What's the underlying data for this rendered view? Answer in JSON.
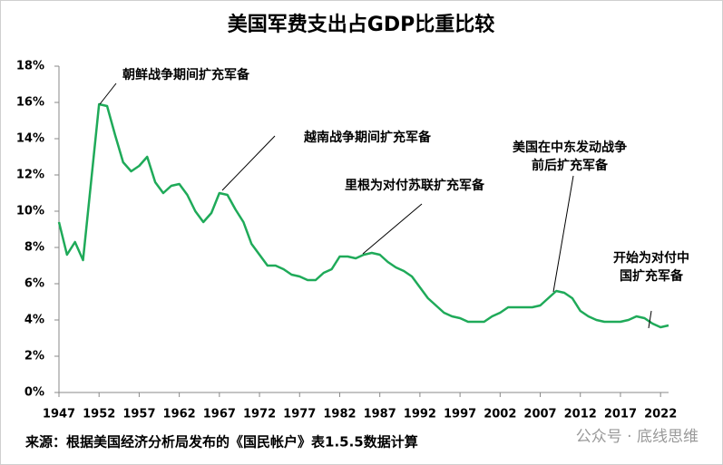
{
  "chart_data": {
    "type": "line",
    "title": "美国军费支出占GDP比重比较",
    "x": [
      1947,
      1948,
      1949,
      1950,
      1951,
      1952,
      1953,
      1954,
      1955,
      1956,
      1957,
      1958,
      1959,
      1960,
      1961,
      1962,
      1963,
      1964,
      1965,
      1966,
      1967,
      1968,
      1969,
      1970,
      1971,
      1972,
      1973,
      1974,
      1975,
      1976,
      1977,
      1978,
      1979,
      1980,
      1981,
      1982,
      1983,
      1984,
      1985,
      1986,
      1987,
      1988,
      1989,
      1990,
      1991,
      1992,
      1993,
      1994,
      1995,
      1996,
      1997,
      1998,
      1999,
      2000,
      2001,
      2002,
      2003,
      2004,
      2005,
      2006,
      2007,
      2008,
      2009,
      2010,
      2011,
      2012,
      2013,
      2014,
      2015,
      2016,
      2017,
      2018,
      2019,
      2020,
      2021,
      2022,
      2023
    ],
    "series": [
      {
        "color": "#1faa59",
        "values": [
          9.4,
          7.6,
          8.3,
          7.3,
          11.6,
          15.9,
          15.8,
          14.2,
          12.7,
          12.2,
          12.5,
          13.0,
          11.6,
          11.0,
          11.4,
          11.5,
          10.9,
          10.0,
          9.4,
          9.9,
          11.0,
          10.9,
          10.1,
          9.4,
          8.2,
          7.6,
          7.0,
          7.0,
          6.8,
          6.5,
          6.4,
          6.2,
          6.2,
          6.6,
          6.8,
          7.5,
          7.5,
          7.4,
          7.6,
          7.7,
          7.6,
          7.2,
          6.9,
          6.7,
          6.4,
          5.8,
          5.2,
          4.8,
          4.4,
          4.2,
          4.1,
          3.9,
          3.9,
          3.9,
          4.2,
          4.4,
          4.7,
          4.7,
          4.7,
          4.7,
          4.8,
          5.2,
          5.6,
          5.5,
          5.2,
          4.5,
          4.2,
          4.0,
          3.9,
          3.9,
          3.9,
          4.0,
          4.2,
          4.1,
          3.8,
          3.6,
          3.7
        ]
      }
    ],
    "xlim": [
      1947,
      2023
    ],
    "xticks": [
      1947,
      1952,
      1957,
      1962,
      1967,
      1972,
      1977,
      1982,
      1987,
      1992,
      1997,
      2002,
      2007,
      2012,
      2017,
      2022
    ],
    "ylim": [
      0,
      18
    ],
    "yticks": [
      {
        "value": 0,
        "label": "0%"
      },
      {
        "value": 2,
        "label": "2%"
      },
      {
        "value": 4,
        "label": "4%"
      },
      {
        "value": 6,
        "label": "6%"
      },
      {
        "value": 8,
        "label": "8%"
      },
      {
        "value": 10,
        "label": "10%"
      },
      {
        "value": 12,
        "label": "12%"
      },
      {
        "value": 14,
        "label": "14%"
      },
      {
        "value": 16,
        "label": "16%"
      },
      {
        "value": 18,
        "label": "18%"
      }
    ],
    "grid": false,
    "annotations": [
      {
        "lines": [
          "朝鲜战争期间扩充军备"
        ]
      },
      {
        "lines": [
          "越南战争期间扩充军备"
        ]
      },
      {
        "lines": [
          "里根为对付苏联扩充军备"
        ]
      },
      {
        "lines": [
          "美国在中东发动战争",
          "前后扩充军备"
        ]
      },
      {
        "lines": [
          "开始为对付中",
          "国扩充军备"
        ]
      }
    ],
    "source": "来源：根据美国经济分析局发布的《国民帐户》表1.5.5数据计算",
    "watermark": "公众号 · 底线思维"
  }
}
